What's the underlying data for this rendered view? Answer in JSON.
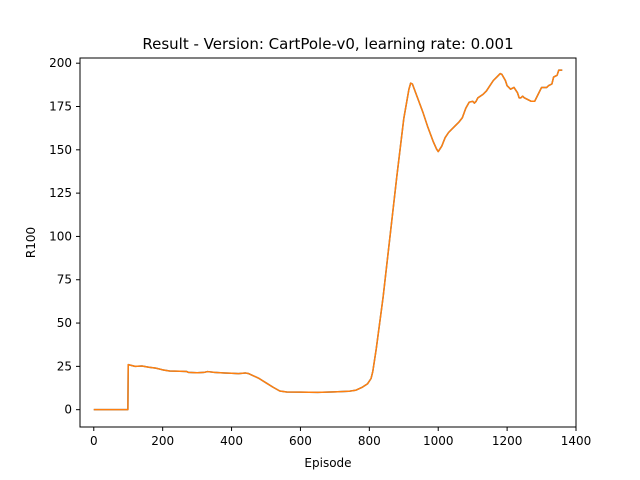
{
  "chart_data": {
    "type": "line",
    "title": "Result - Version: CartPole-v0, learning rate: 0.001",
    "xlabel": "Episode",
    "ylabel": "R100",
    "xlim": [
      -40,
      1400
    ],
    "ylim": [
      -10,
      203
    ],
    "x_ticks": [
      0,
      200,
      400,
      600,
      800,
      1000,
      1200,
      1400
    ],
    "y_ticks": [
      0,
      25,
      50,
      75,
      100,
      125,
      150,
      175,
      200
    ],
    "grid": false,
    "series": [
      {
        "color": "#ff7f0e",
        "underlay_color": "#1f77b4",
        "points": [
          [
            0,
            0
          ],
          [
            50,
            0
          ],
          [
            99,
            0
          ],
          [
            100,
            26
          ],
          [
            110,
            25.5
          ],
          [
            120,
            25
          ],
          [
            140,
            25.2
          ],
          [
            160,
            24.5
          ],
          [
            180,
            24
          ],
          [
            200,
            23
          ],
          [
            220,
            22.3
          ],
          [
            250,
            22.2
          ],
          [
            270,
            22
          ],
          [
            275,
            21.5
          ],
          [
            300,
            21.3
          ],
          [
            320,
            21.5
          ],
          [
            330,
            22
          ],
          [
            350,
            21.5
          ],
          [
            380,
            21.2
          ],
          [
            400,
            21
          ],
          [
            420,
            20.8
          ],
          [
            440,
            21.2
          ],
          [
            450,
            20.8
          ],
          [
            480,
            18
          ],
          [
            500,
            15.5
          ],
          [
            520,
            13
          ],
          [
            540,
            10.8
          ],
          [
            560,
            10.2
          ],
          [
            600,
            10.1
          ],
          [
            650,
            10
          ],
          [
            700,
            10.3
          ],
          [
            740,
            10.6
          ],
          [
            760,
            11.2
          ],
          [
            780,
            13
          ],
          [
            795,
            15
          ],
          [
            805,
            18
          ],
          [
            810,
            22
          ],
          [
            820,
            35
          ],
          [
            840,
            65
          ],
          [
            860,
            100
          ],
          [
            880,
            135
          ],
          [
            900,
            168
          ],
          [
            915,
            185
          ],
          [
            920,
            188.5
          ],
          [
            925,
            188
          ],
          [
            940,
            180
          ],
          [
            955,
            172
          ],
          [
            970,
            163
          ],
          [
            985,
            155
          ],
          [
            995,
            150.5
          ],
          [
            1000,
            149
          ],
          [
            1010,
            152
          ],
          [
            1020,
            157
          ],
          [
            1030,
            160
          ],
          [
            1040,
            162
          ],
          [
            1050,
            164
          ],
          [
            1060,
            166
          ],
          [
            1070,
            168.5
          ],
          [
            1080,
            174
          ],
          [
            1090,
            177.5
          ],
          [
            1100,
            178
          ],
          [
            1105,
            177
          ],
          [
            1110,
            178
          ],
          [
            1115,
            180
          ],
          [
            1130,
            182
          ],
          [
            1140,
            184
          ],
          [
            1150,
            187
          ],
          [
            1160,
            190
          ],
          [
            1170,
            192
          ],
          [
            1180,
            194
          ],
          [
            1185,
            193.5
          ],
          [
            1195,
            190
          ],
          [
            1200,
            187
          ],
          [
            1210,
            185
          ],
          [
            1220,
            186
          ],
          [
            1230,
            183
          ],
          [
            1235,
            180
          ],
          [
            1240,
            180
          ],
          [
            1245,
            181
          ],
          [
            1250,
            180
          ],
          [
            1260,
            179
          ],
          [
            1270,
            178
          ],
          [
            1280,
            178
          ],
          [
            1290,
            182
          ],
          [
            1300,
            186
          ],
          [
            1315,
            186
          ],
          [
            1320,
            187
          ],
          [
            1330,
            188
          ],
          [
            1335,
            192
          ],
          [
            1345,
            193
          ],
          [
            1350,
            196
          ],
          [
            1360,
            196
          ]
        ]
      }
    ]
  }
}
